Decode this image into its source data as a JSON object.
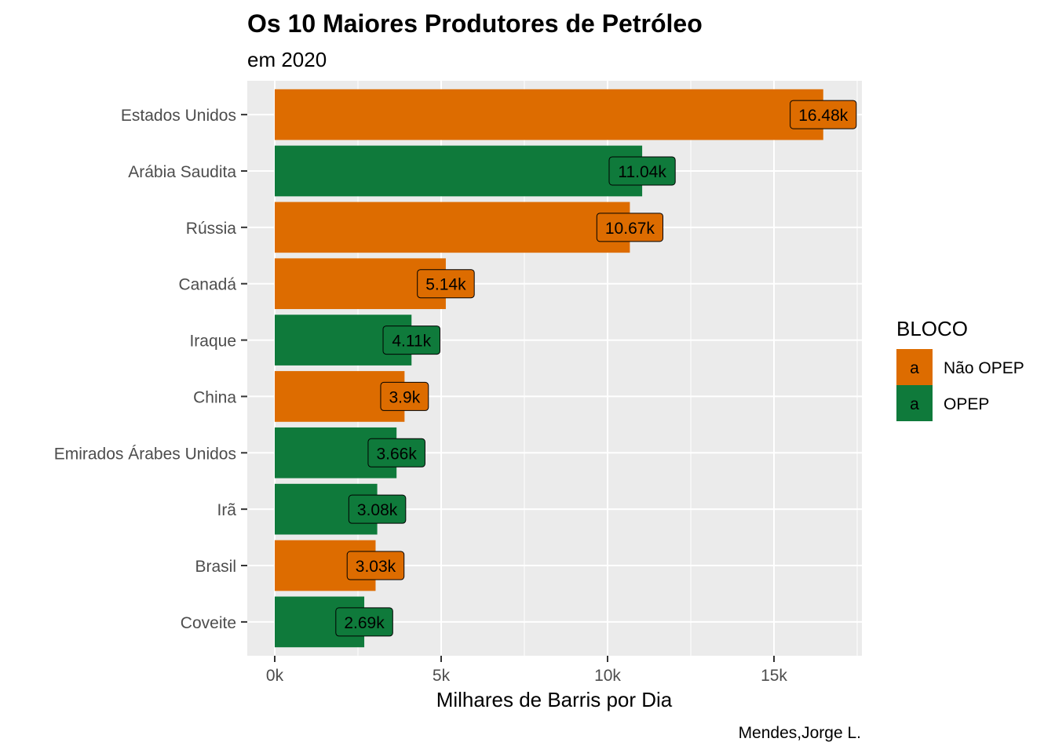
{
  "chart_data": {
    "type": "bar",
    "orientation": "horizontal",
    "title": "Os 10 Maiores Produtores de Petróleo",
    "subtitle": "em 2020",
    "xlabel": "Milhares de Barris por Dia",
    "ylabel": "",
    "caption": "Mendes,Jorge L.",
    "xlim": [
      0,
      17500
    ],
    "x_ticks": [
      0,
      5000,
      10000,
      15000
    ],
    "x_tick_labels": [
      "0k",
      "5k",
      "10k",
      "15k"
    ],
    "grid": true,
    "legend": {
      "title": "BLOCO",
      "placement": "right",
      "key_glyph": "a",
      "entries": [
        {
          "name": "Não OPEP",
          "color": "#D95F02"
        },
        {
          "name": "OPEP",
          "color": "#1B9E77"
        }
      ]
    },
    "colors": {
      "Não OPEP": "#DD6C00",
      "OPEP": "#0F7A3B",
      "panel_background": "#EBEBEB",
      "grid": "#FFFFFF"
    },
    "categories": [
      "Estados Unidos",
      "Arábia Saudita",
      "Rússia",
      "Canadá",
      "Iraque",
      "China",
      "Emirados Árabes Unidos",
      "Irã",
      "Brasil",
      "Coveite"
    ],
    "values": [
      16480,
      11040,
      10670,
      5140,
      4110,
      3900,
      3660,
      3080,
      3030,
      2690
    ],
    "groups": [
      "Não OPEP",
      "OPEP",
      "Não OPEP",
      "Não OPEP",
      "OPEP",
      "Não OPEP",
      "OPEP",
      "OPEP",
      "Não OPEP",
      "OPEP"
    ],
    "data_labels": [
      "16.48k",
      "11.04k",
      "10.67k",
      "5.14k",
      "4.11k",
      "3.9k",
      "3.66k",
      "3.08k",
      "3.03k",
      "2.69k"
    ]
  }
}
